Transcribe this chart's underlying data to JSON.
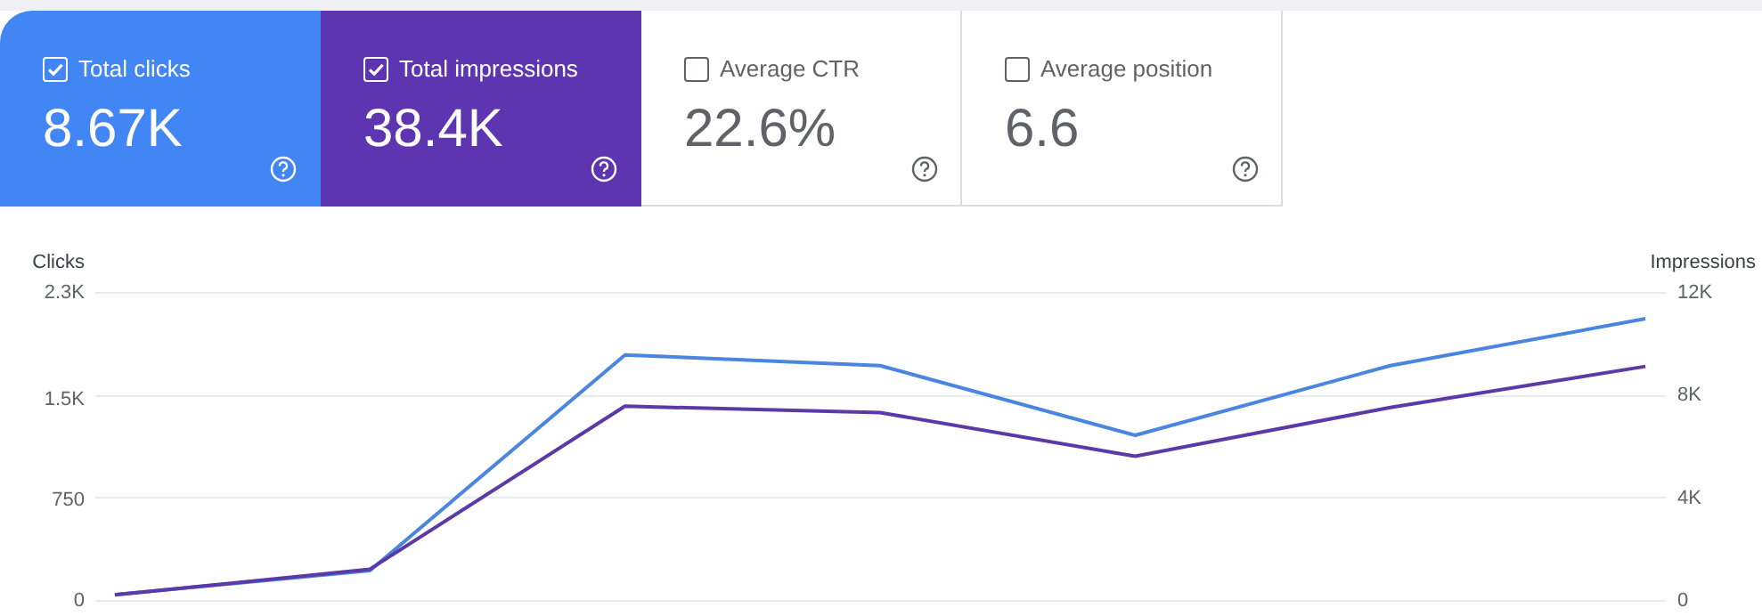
{
  "chart_data": [
    {
      "type": "other",
      "annotations": [
        "Total clicks",
        "8.67K",
        "Total impressions",
        "38.4K",
        "Average CTR",
        "22.6%",
        "Average position",
        "6.6"
      ]
    },
    {
      "type": "line",
      "categories": [
        null,
        null,
        null,
        null,
        null,
        null,
        null
      ],
      "ylabel": "Clicks",
      "y2label": "Impressions",
      "series": [
        {
          "color": "#4a86e0",
          "values": [
            40,
            220,
            1830,
            1750,
            1230,
            1750,
            2100
          ]
        },
        {
          "color": "#5b3aa8",
          "axis": "y2",
          "values": [
            200,
            1200,
            7550,
            7300,
            5600,
            7500,
            9100
          ]
        }
      ],
      "ylim": [
        0,
        2300
      ],
      "yticks": [
        0,
        750,
        {
          "value": 1500,
          "label": "1.5K"
        },
        {
          "value": 2300,
          "label": "2.3K"
        }
      ],
      "y2lim": [
        0,
        12000
      ],
      "y2ticks": [
        0,
        {
          "value": 4000,
          "label": "4K"
        },
        {
          "value": 8000,
          "label": "8K"
        },
        {
          "value": 12000,
          "label": "12K"
        }
      ],
      "grid": "y",
      "marker": "none",
      "line_style": "solid"
    }
  ]
}
